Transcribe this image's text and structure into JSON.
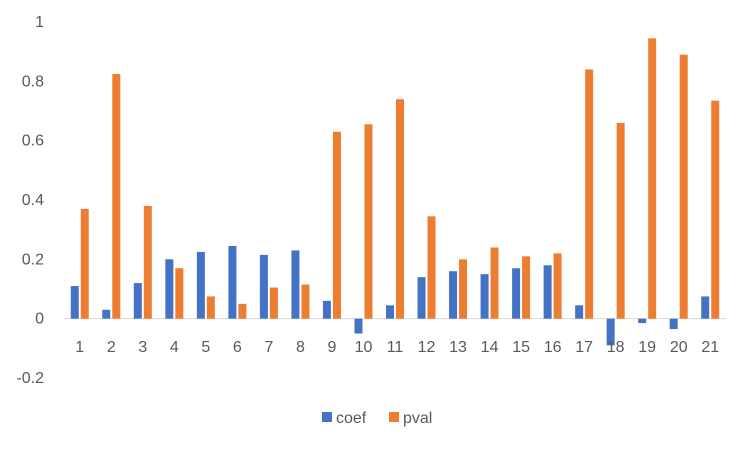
{
  "chart_data": {
    "type": "bar",
    "title": "",
    "xlabel": "",
    "ylabel": "",
    "ylim": [
      -0.2,
      1
    ],
    "yticks": [
      -0.2,
      0,
      0.2,
      0.4,
      0.6,
      0.8,
      1
    ],
    "ytick_labels": [
      "-0.2",
      "0",
      "0.2",
      "0.4",
      "0.6",
      "0.8",
      "1"
    ],
    "grid": false,
    "legend_position": "bottom",
    "categories": [
      "1",
      "2",
      "3",
      "4",
      "5",
      "6",
      "7",
      "8",
      "9",
      "10",
      "11",
      "12",
      "13",
      "14",
      "15",
      "16",
      "17",
      "18",
      "19",
      "20",
      "21"
    ],
    "series": [
      {
        "name": "coef",
        "color": "#4472C4",
        "values": [
          0.11,
          0.03,
          0.12,
          0.2,
          0.225,
          0.245,
          0.215,
          0.23,
          0.06,
          -0.05,
          0.045,
          0.14,
          0.16,
          0.15,
          0.17,
          0.18,
          0.045,
          -0.09,
          -0.015,
          -0.035,
          0.075
        ]
      },
      {
        "name": "pval",
        "color": "#ED7D31",
        "values": [
          0.37,
          0.825,
          0.38,
          0.17,
          0.075,
          0.05,
          0.105,
          0.115,
          0.63,
          0.655,
          0.74,
          0.345,
          0.2,
          0.24,
          0.21,
          0.22,
          0.84,
          0.66,
          0.945,
          0.89,
          0.735
        ]
      }
    ]
  }
}
